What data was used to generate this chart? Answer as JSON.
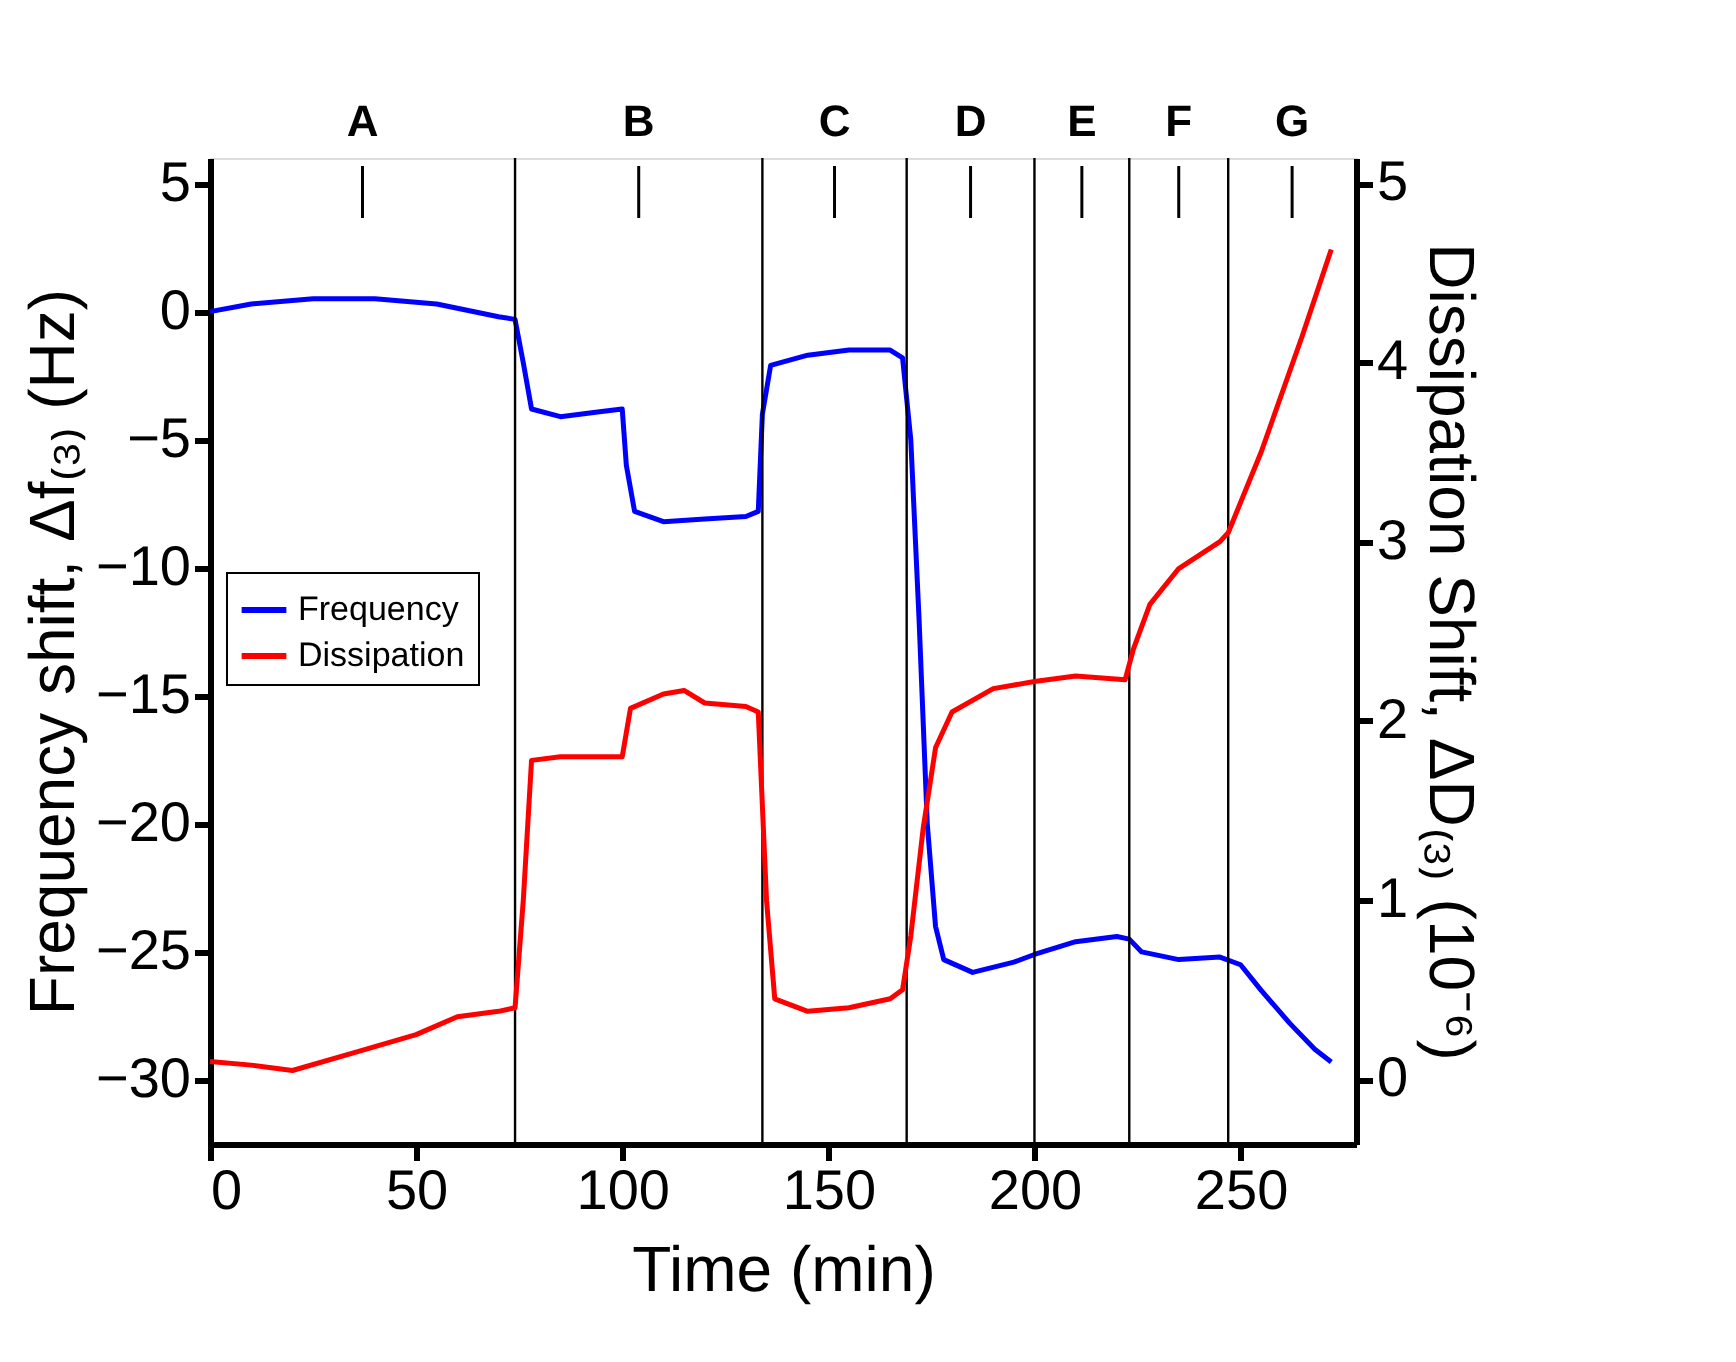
{
  "chart_data": {
    "type": "line",
    "xlabel": "Time (min)",
    "ylabel": "Frequency shift, Δf₍₃₎ (Hz)",
    "y2label": "Dissipation Shift, ΔD₍₃₎ (10⁻⁶)",
    "xlim": [
      0,
      278
    ],
    "xticks": [
      0,
      50,
      100,
      150,
      200,
      250
    ],
    "ylim": [
      -32.5,
      6
    ],
    "yticks": [
      -30,
      -25,
      -20,
      -15,
      -10,
      -5,
      0,
      5
    ],
    "y2lim": [
      -0.36,
      5.14
    ],
    "y2ticks": [
      0,
      1,
      2,
      3,
      4,
      5
    ],
    "grid": false,
    "legend": "left",
    "line_style": "solid",
    "marker": "none",
    "series": [
      {
        "name": "Frequency",
        "color": "#0000ff",
        "x": [
          0,
          10,
          25,
          40,
          55,
          70,
          74,
          76,
          78,
          85,
          95,
          100,
          101,
          103,
          110,
          120,
          130,
          133,
          134,
          136,
          145,
          155,
          165,
          168,
          170,
          172,
          174,
          176,
          178,
          185,
          195,
          200,
          210,
          220,
          223,
          226,
          235,
          245,
          250,
          255,
          262,
          268,
          272
        ],
        "values": [
          0,
          0.3,
          0.5,
          0.5,
          0.3,
          -0.2,
          -0.3,
          -2,
          -3.8,
          -4.1,
          -3.9,
          -3.8,
          -6,
          -7.8,
          -8.2,
          -8.1,
          -8,
          -7.8,
          -4,
          -2.1,
          -1.7,
          -1.5,
          -1.5,
          -1.8,
          -5,
          -12,
          -20,
          -24,
          -25.3,
          -25.8,
          -25.4,
          -25.1,
          -24.6,
          -24.4,
          -24.5,
          -25,
          -25.3,
          -25.2,
          -25.5,
          -26.5,
          -27.8,
          -28.8,
          -29.3
        ]
      },
      {
        "name": "Dissipation",
        "color": "#ff0000",
        "axis": "y2",
        "x": [
          0,
          10,
          20,
          35,
          50,
          60,
          70,
          74,
          76,
          78,
          85,
          95,
          100,
          102,
          110,
          115,
          120,
          130,
          133,
          135,
          137,
          145,
          155,
          165,
          168,
          170,
          173,
          176,
          180,
          190,
          200,
          210,
          222,
          224,
          228,
          235,
          245,
          247,
          255,
          265,
          272
        ],
        "values": [
          0.1,
          0.08,
          0.05,
          0.15,
          0.25,
          0.35,
          0.38,
          0.4,
          1,
          1.78,
          1.8,
          1.8,
          1.8,
          2.07,
          2.15,
          2.17,
          2.1,
          2.08,
          2.05,
          1,
          0.45,
          0.38,
          0.4,
          0.45,
          0.5,
          0.8,
          1.4,
          1.85,
          2.05,
          2.18,
          2.22,
          2.25,
          2.23,
          2.4,
          2.65,
          2.85,
          3,
          3.05,
          3.5,
          4.15,
          4.63
        ]
      }
    ],
    "ref_lines": [
      {
        "axis": "x",
        "value": 74,
        "color": "#000000"
      },
      {
        "axis": "x",
        "value": 134,
        "color": "#000000"
      },
      {
        "axis": "x",
        "value": 169,
        "color": "#000000"
      },
      {
        "axis": "x",
        "value": 200,
        "color": "#000000"
      },
      {
        "axis": "x",
        "value": 223,
        "color": "#000000"
      },
      {
        "axis": "x",
        "value": 247,
        "color": "#000000"
      }
    ],
    "annotations": [
      "A",
      "B",
      "C",
      "D",
      "E",
      "F",
      "G"
    ]
  }
}
